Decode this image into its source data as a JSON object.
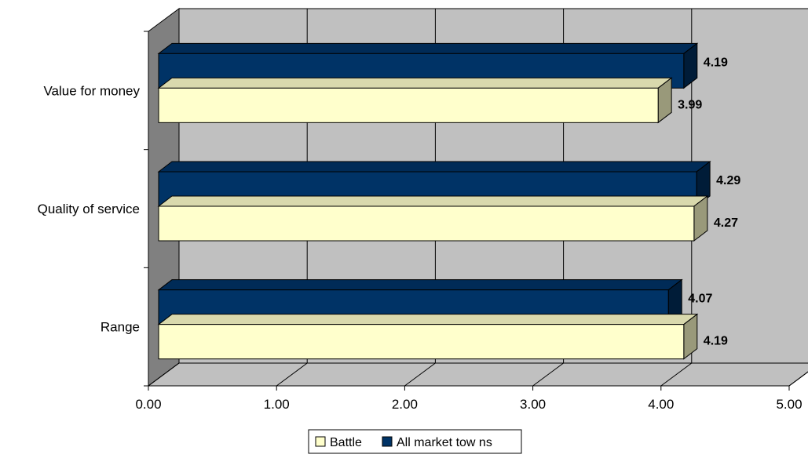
{
  "chart_data": {
    "type": "bar",
    "orientation": "horizontal",
    "three_d": true,
    "categories": [
      "Range",
      "Quality of service",
      "Value for money"
    ],
    "series": [
      {
        "name": "Battle",
        "values": [
          4.19,
          4.27,
          3.99
        ],
        "color": "#FFFFCC"
      },
      {
        "name": "All market tow ns",
        "values": [
          4.07,
          4.29,
          4.19
        ],
        "color": "#003366"
      }
    ],
    "xlim": [
      0,
      5
    ],
    "x_ticks": [
      "0.00",
      "1.00",
      "2.00",
      "3.00",
      "4.00",
      "5.00"
    ],
    "data_labels": {
      "Battle": [
        "4.19",
        "4.27",
        "3.99"
      ],
      "All market tow ns": [
        "4.07",
        "4.29",
        "4.19"
      ]
    },
    "grid": true,
    "legend_position": "bottom",
    "wall_color": "#C0C0C0",
    "side_wall_color": "#808080"
  }
}
